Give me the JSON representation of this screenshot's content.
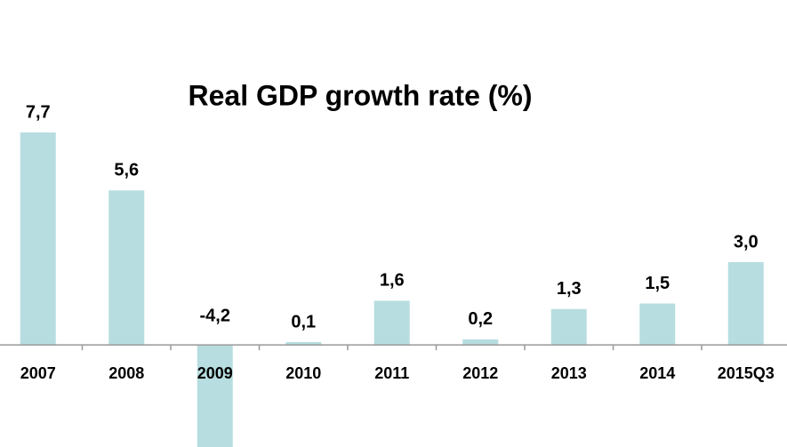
{
  "chart_data": {
    "type": "bar",
    "title": "Real GDP growth rate (%)",
    "categories": [
      "2007",
      "2008",
      "2009",
      "2010",
      "2011",
      "2012",
      "2013",
      "2014",
      "2015Q3"
    ],
    "values": [
      7.7,
      5.6,
      -4.2,
      0.1,
      1.6,
      0.2,
      1.3,
      1.5,
      3.0
    ],
    "value_labels": [
      "7,7",
      "5,6",
      "-4,2",
      "0,1",
      "1,6",
      "0,2",
      "1,3",
      "1,5",
      "3,0"
    ],
    "color": "#b7dde0",
    "ylim": [
      -3.7,
      12.5
    ]
  }
}
